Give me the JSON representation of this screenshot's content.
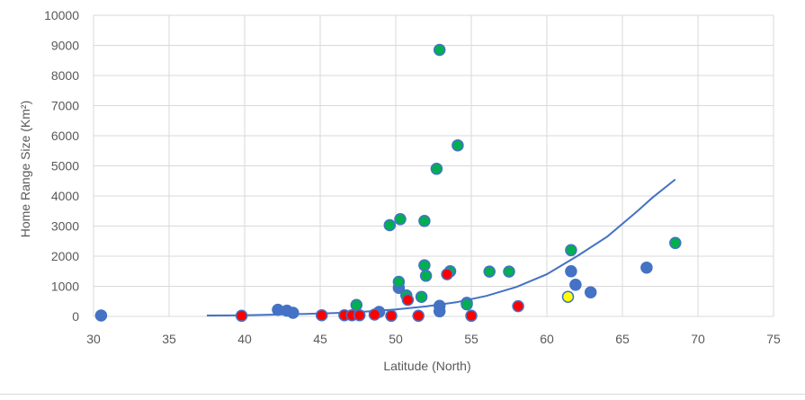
{
  "chart_data": {
    "type": "scatter",
    "title": "",
    "xlabel": "Latitude (North)",
    "ylabel": "Home Range Size (Km²)",
    "xlim": [
      30,
      75
    ],
    "ylim": [
      0,
      10000
    ],
    "x_ticks": [
      30,
      35,
      40,
      45,
      50,
      55,
      60,
      65,
      70,
      75
    ],
    "y_ticks": [
      0,
      1000,
      2000,
      3000,
      4000,
      5000,
      6000,
      7000,
      8000,
      9000,
      10000
    ],
    "grid": true,
    "legend": "none",
    "colors": {
      "blue": "#4472c4",
      "green": "#00b050",
      "red": "#ff0000",
      "yellow": "#ffff00",
      "trend": "#4472c4",
      "grid": "#d9d9d9",
      "text": "#595959"
    },
    "trendline": {
      "type": "exponential",
      "points": [
        [
          37.5,
          30
        ],
        [
          40,
          40
        ],
        [
          42,
          60
        ],
        [
          44,
          80
        ],
        [
          46,
          110
        ],
        [
          48,
          160
        ],
        [
          50,
          230
        ],
        [
          52,
          330
        ],
        [
          54,
          470
        ],
        [
          56,
          680
        ],
        [
          58,
          980
        ],
        [
          60,
          1400
        ],
        [
          62,
          2000
        ],
        [
          64,
          2650
        ],
        [
          66,
          3500
        ],
        [
          67,
          3950
        ],
        [
          68.5,
          4550
        ]
      ]
    },
    "series": [
      {
        "color": "blue",
        "points": [
          [
            30.5,
            30
          ],
          [
            42.2,
            220
          ],
          [
            42.8,
            190
          ],
          [
            43.2,
            120
          ],
          [
            48.9,
            150
          ],
          [
            50.2,
            950
          ],
          [
            52.9,
            170
          ],
          [
            52.9,
            350
          ],
          [
            54.7,
            450
          ],
          [
            61.6,
            1500
          ],
          [
            61.9,
            1050
          ],
          [
            62.9,
            800
          ],
          [
            66.6,
            1620
          ]
        ]
      },
      {
        "color": "green",
        "points": [
          [
            47.4,
            380
          ],
          [
            49.6,
            3030
          ],
          [
            50.2,
            1150
          ],
          [
            50.3,
            3230
          ],
          [
            50.7,
            700
          ],
          [
            51.7,
            650
          ],
          [
            51.9,
            1700
          ],
          [
            51.9,
            3170
          ],
          [
            52.0,
            1350
          ],
          [
            52.7,
            4900
          ],
          [
            52.9,
            8850
          ],
          [
            53.6,
            1500
          ],
          [
            54.1,
            5680
          ],
          [
            54.7,
            400
          ],
          [
            56.2,
            1490
          ],
          [
            57.5,
            1490
          ],
          [
            61.6,
            2200
          ],
          [
            68.5,
            2440
          ]
        ]
      },
      {
        "color": "red",
        "points": [
          [
            39.8,
            20
          ],
          [
            45.1,
            40
          ],
          [
            46.6,
            40
          ],
          [
            47.1,
            40
          ],
          [
            47.6,
            40
          ],
          [
            48.6,
            60
          ],
          [
            49.7,
            20
          ],
          [
            50.8,
            550
          ],
          [
            51.5,
            20
          ],
          [
            53.4,
            1400
          ],
          [
            55.0,
            20
          ],
          [
            58.1,
            340
          ]
        ]
      },
      {
        "color": "yellow",
        "points": [
          [
            61.4,
            650
          ]
        ]
      }
    ]
  }
}
